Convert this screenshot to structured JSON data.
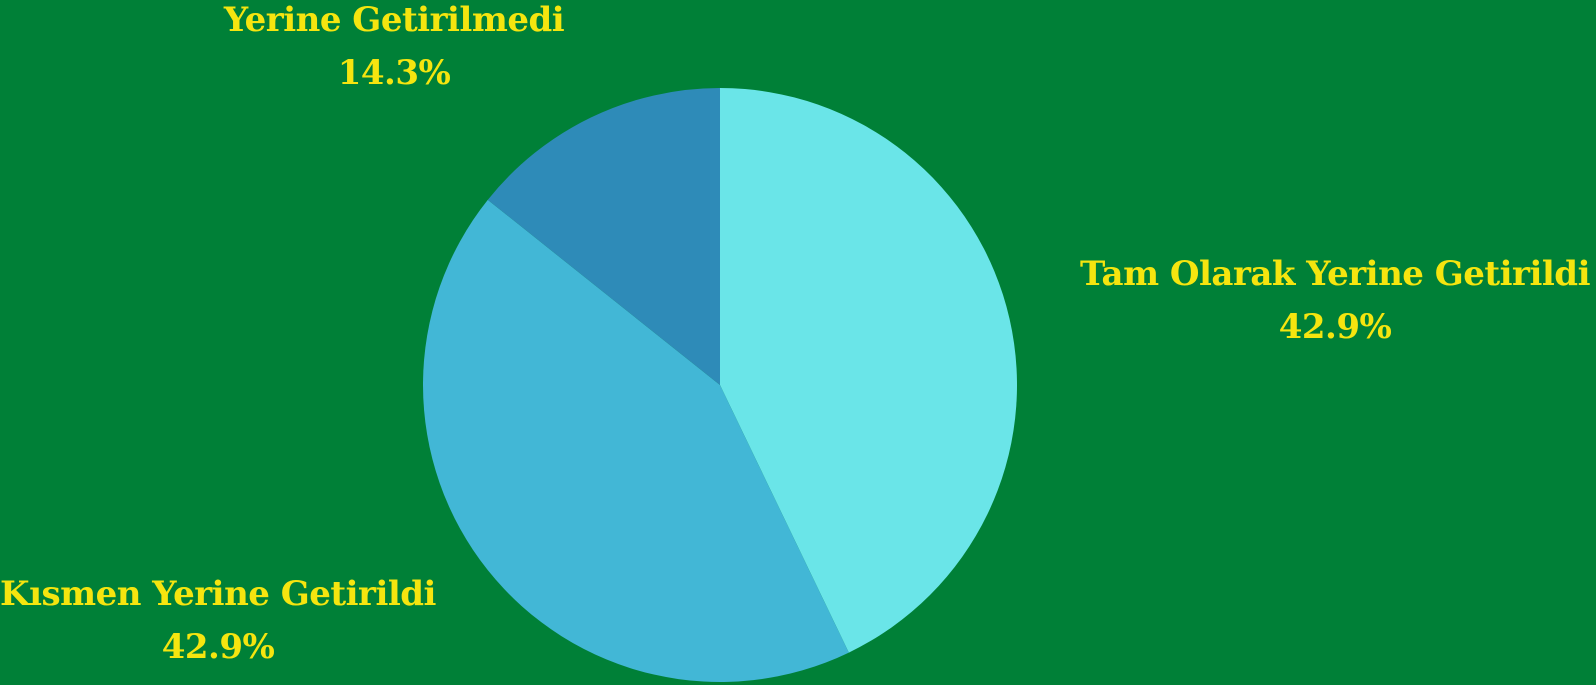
{
  "chart_data": {
    "type": "pie",
    "slices": [
      {
        "label": "Tam Olarak Yerine Getirildi",
        "value": 42.9,
        "value_text": "42.9%",
        "color": "#6ae5e8"
      },
      {
        "label": "Kısmen Yerine Getirildi",
        "value": 42.9,
        "value_text": "42.9%",
        "color": "#42b7d6"
      },
      {
        "label": "Yerine Getirilmedi",
        "value": 14.3,
        "value_text": "14.3%",
        "color": "#2e8bb8"
      }
    ],
    "start_angle": "12 o'clock",
    "direction": "clockwise",
    "label_color": "#f5e50f",
    "background": "#008037",
    "legend": "none"
  }
}
